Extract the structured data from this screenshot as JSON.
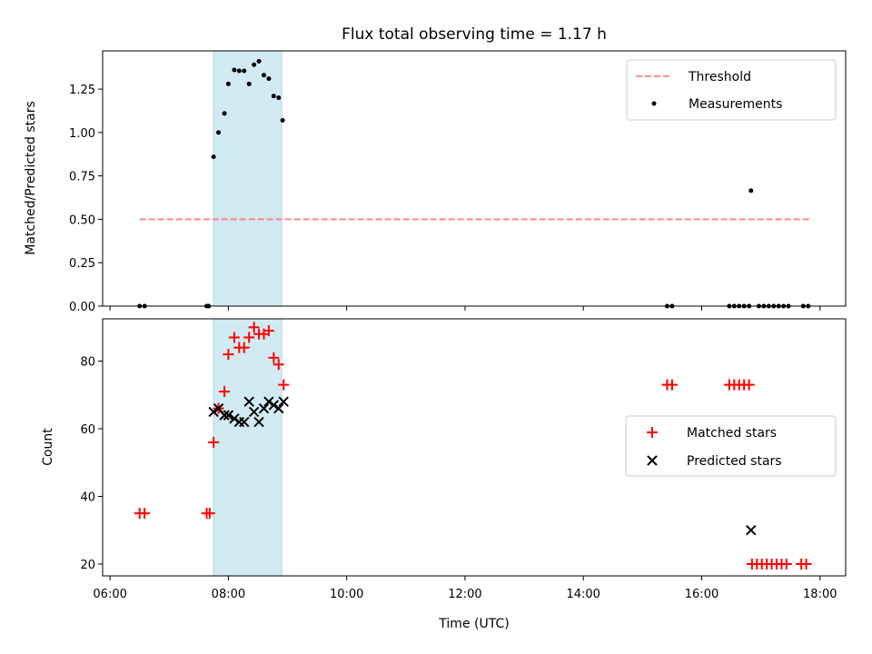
{
  "chart_data": [
    {
      "type": "scatter",
      "title": "Flux total observing time = 1.17 h",
      "xlabel": "",
      "ylabel": "Matched/Predicted stars",
      "xlim": [
        "06:00",
        "18:00"
      ],
      "ylim": [
        0,
        1.47
      ],
      "yticks": [
        "0.00",
        "0.25",
        "0.50",
        "0.75",
        "1.00",
        "1.25"
      ],
      "highlight_span": [
        "07:45",
        "08:54"
      ],
      "highlight_color": "#add8e6",
      "threshold": {
        "name": "Threshold",
        "value": 0.5,
        "x_start": "06:30",
        "x_end": "17:50",
        "color": "#ff7f7f"
      },
      "series": [
        {
          "name": "Measurements",
          "color": "#000000",
          "points": [
            [
              "06:30",
              0.0
            ],
            [
              "06:35",
              0.0
            ],
            [
              "07:38",
              0.0
            ],
            [
              "07:40",
              0.0
            ],
            [
              "07:45",
              0.86
            ],
            [
              "07:50",
              1.0
            ],
            [
              "07:56",
              1.11
            ],
            [
              "08:00",
              1.28
            ],
            [
              "08:06",
              1.36
            ],
            [
              "08:11",
              1.355
            ],
            [
              "08:16",
              1.355
            ],
            [
              "08:21",
              1.28
            ],
            [
              "08:26",
              1.39
            ],
            [
              "08:31",
              1.41
            ],
            [
              "08:36",
              1.33
            ],
            [
              "08:41",
              1.31
            ],
            [
              "08:46",
              1.21
            ],
            [
              "08:51",
              1.2
            ],
            [
              "08:55",
              1.07
            ],
            [
              "15:25",
              0.0
            ],
            [
              "15:30",
              0.0
            ],
            [
              "16:28",
              0.0
            ],
            [
              "16:33",
              0.0
            ],
            [
              "16:38",
              0.0
            ],
            [
              "16:43",
              0.0
            ],
            [
              "16:48",
              0.0
            ],
            [
              "16:50",
              0.665
            ],
            [
              "16:58",
              0.0
            ],
            [
              "17:03",
              0.0
            ],
            [
              "17:08",
              0.0
            ],
            [
              "17:13",
              0.0
            ],
            [
              "17:18",
              0.0
            ],
            [
              "17:23",
              0.0
            ],
            [
              "17:28",
              0.0
            ],
            [
              "17:43",
              0.0
            ],
            [
              "17:48",
              0.0
            ]
          ]
        }
      ],
      "legend": "top-right"
    },
    {
      "type": "scatter",
      "title": "",
      "xlabel": "Time (UTC)",
      "ylabel": "Count",
      "xlim": [
        "06:00",
        "18:00"
      ],
      "xticks": [
        "06:00",
        "08:00",
        "10:00",
        "12:00",
        "14:00",
        "16:00",
        "18:00"
      ],
      "ylim": [
        16.5,
        92.5
      ],
      "yticks": [
        "20",
        "40",
        "60",
        "80"
      ],
      "highlight_span": [
        "07:45",
        "08:54"
      ],
      "highlight_color": "#add8e6",
      "series": [
        {
          "name": "Matched stars",
          "marker": "plus",
          "color": "#ff0000",
          "points": [
            [
              "06:30",
              35
            ],
            [
              "06:35",
              35
            ],
            [
              "07:38",
              35
            ],
            [
              "07:41",
              35
            ],
            [
              "07:45",
              56
            ],
            [
              "07:50",
              66
            ],
            [
              "07:56",
              71
            ],
            [
              "08:00",
              82
            ],
            [
              "08:06",
              87
            ],
            [
              "08:11",
              84
            ],
            [
              "08:16",
              84
            ],
            [
              "08:21",
              87
            ],
            [
              "08:26",
              90
            ],
            [
              "08:31",
              88
            ],
            [
              "08:36",
              88
            ],
            [
              "08:41",
              89
            ],
            [
              "08:46",
              81
            ],
            [
              "08:51",
              79
            ],
            [
              "08:56",
              73
            ],
            [
              "15:25",
              73
            ],
            [
              "15:30",
              73
            ],
            [
              "16:28",
              73
            ],
            [
              "16:33",
              73
            ],
            [
              "16:38",
              73
            ],
            [
              "16:43",
              73
            ],
            [
              "16:48",
              73
            ],
            [
              "16:51",
              20
            ],
            [
              "16:56",
              20
            ],
            [
              "17:01",
              20
            ],
            [
              "17:06",
              20
            ],
            [
              "17:11",
              20
            ],
            [
              "17:16",
              20
            ],
            [
              "17:21",
              20
            ],
            [
              "17:26",
              20
            ],
            [
              "17:41",
              20
            ],
            [
              "17:46",
              20
            ]
          ]
        },
        {
          "name": "Predicted stars",
          "marker": "x",
          "color": "#000000",
          "points": [
            [
              "07:45",
              65
            ],
            [
              "07:50",
              66
            ],
            [
              "07:56",
              64
            ],
            [
              "08:00",
              64
            ],
            [
              "08:06",
              63
            ],
            [
              "08:11",
              62
            ],
            [
              "08:16",
              62
            ],
            [
              "08:21",
              68
            ],
            [
              "08:26",
              65
            ],
            [
              "08:31",
              62
            ],
            [
              "08:36",
              66
            ],
            [
              "08:41",
              68
            ],
            [
              "08:46",
              67
            ],
            [
              "08:51",
              66
            ],
            [
              "08:56",
              68
            ],
            [
              "16:50",
              30
            ]
          ]
        }
      ],
      "legend": "center-right"
    }
  ]
}
